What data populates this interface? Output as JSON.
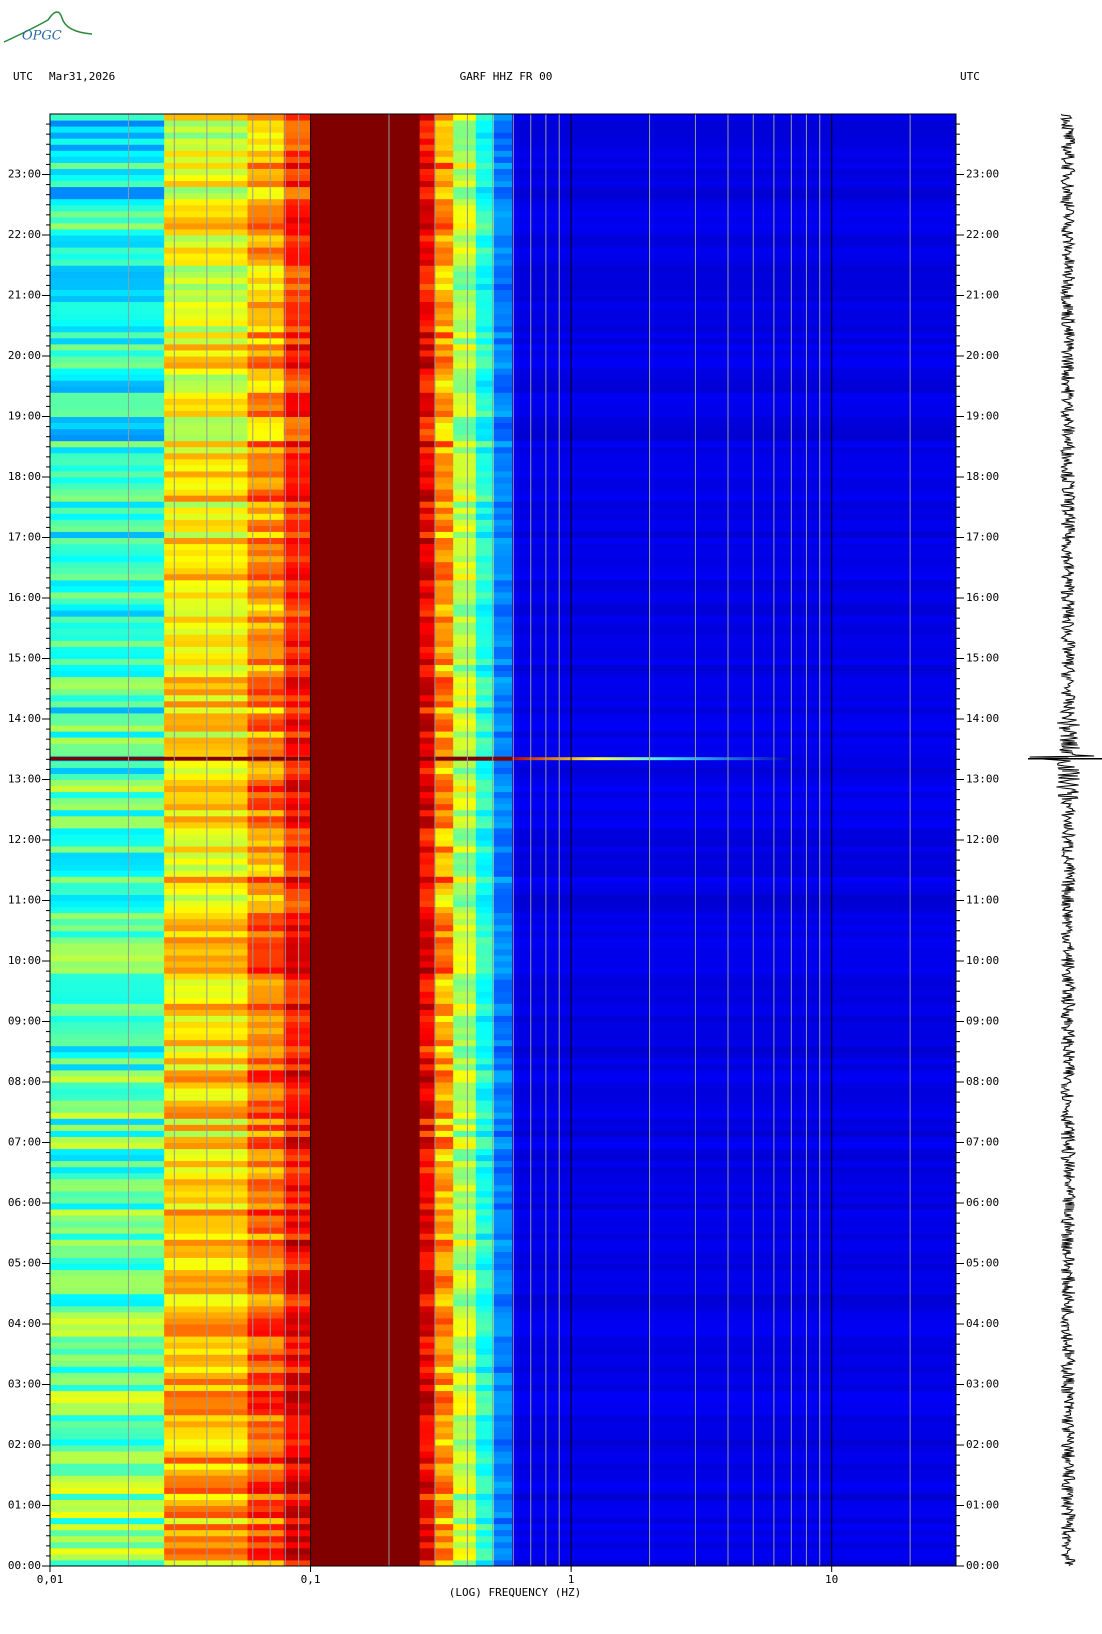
{
  "logo": "OPGC",
  "chart_data": {
    "type": "spectrogram",
    "left_label": "UTC",
    "date": "Mar31,2026",
    "title": "GARF HHZ FR 00",
    "right_label": "UTC",
    "xlabel": "(LOG) FREQUENCY (HZ)",
    "xscale": "log",
    "xlim": [
      0.01,
      30
    ],
    "xticks": [
      {
        "value": 0.01,
        "label": "0,01"
      },
      {
        "value": 0.1,
        "label": "0,1"
      },
      1,
      10
    ],
    "ylim": [
      0,
      24
    ],
    "yticks": [
      {
        "value": 0,
        "label": "00:00"
      },
      {
        "value": 1,
        "label": "01:00"
      },
      {
        "value": 2,
        "label": "02:00"
      },
      {
        "value": 3,
        "label": "03:00"
      },
      {
        "value": 4,
        "label": "04:00"
      },
      {
        "value": 5,
        "label": "05:00"
      },
      {
        "value": 6,
        "label": "06:00"
      },
      {
        "value": 7,
        "label": "07:00"
      },
      {
        "value": 8,
        "label": "08:00"
      },
      {
        "value": 9,
        "label": "09:00"
      },
      {
        "value": 10,
        "label": "10:00"
      },
      {
        "value": 11,
        "label": "11:00"
      },
      {
        "value": 12,
        "label": "12:00"
      },
      {
        "value": 13,
        "label": "13:00"
      },
      {
        "value": 14,
        "label": "14:00"
      },
      {
        "value": 15,
        "label": "15:00"
      },
      {
        "value": 16,
        "label": "16:00"
      },
      {
        "value": 17,
        "label": "17:00"
      },
      {
        "value": 18,
        "label": "18:00"
      },
      {
        "value": 19,
        "label": "19:00"
      },
      {
        "value": 20,
        "label": "20:00"
      },
      {
        "value": 21,
        "label": "21:00"
      },
      {
        "value": 22,
        "label": "22:00"
      },
      {
        "value": 23,
        "label": "23:00"
      }
    ]
  }
}
